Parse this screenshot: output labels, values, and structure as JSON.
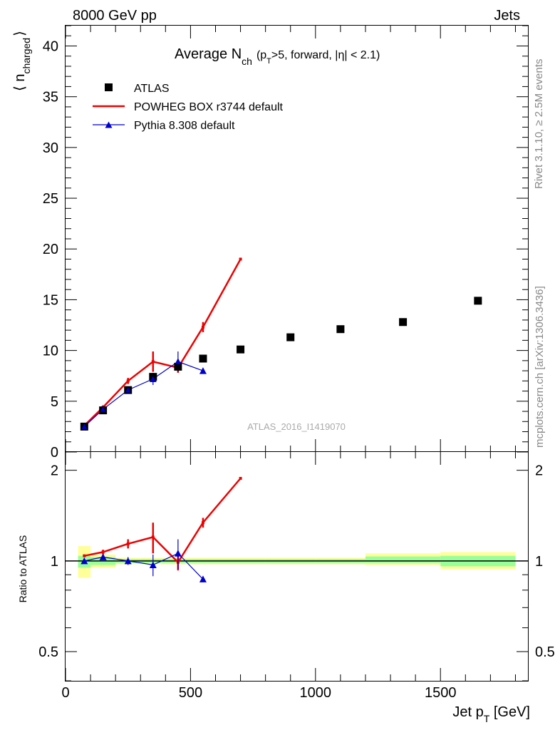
{
  "header": {
    "left": "8000 GeV pp",
    "right": "Jets"
  },
  "title": {
    "main": "Average N",
    "sub": "ch",
    "extra_open": "(p",
    "extra_sub": "T",
    "extra_rest": ">5, forward, |η| < 2.1)"
  },
  "side_labels": {
    "rivet": "Rivet 3.1.10, ≥ 2.5M events",
    "mcplots": "mcplots.cern.ch [arXiv:1306.3436]"
  },
  "watermark": "ATLAS_2016_I1419070",
  "colors": {
    "atlas": "#000000",
    "powheg": "#ee0000",
    "pythia": "#0000cc",
    "band_inner": "#99ff99",
    "band_outer": "#ffff99"
  },
  "chart_data": [
    {
      "type": "scatter",
      "ylabel_open": "⟨ n",
      "ylabel_sub": "charged",
      "ylabel_close": "⟩",
      "xlim": [
        0,
        1850
      ],
      "ylim": [
        0,
        42
      ],
      "yticks": [
        0,
        5,
        10,
        15,
        20,
        25,
        30,
        35,
        40
      ],
      "legend_position": "top-left",
      "series": [
        {
          "name": "ATLAS",
          "style": "markers",
          "x": [
            75,
            150,
            250,
            350,
            450,
            550,
            700,
            900,
            1100,
            1350,
            1650
          ],
          "y": [
            2.5,
            4.1,
            6.1,
            7.4,
            8.4,
            9.2,
            10.1,
            11.3,
            12.1,
            12.8,
            14.9
          ]
        },
        {
          "name": "POWHEG BOX r3744 default",
          "style": "line",
          "x": [
            75,
            150,
            250,
            350,
            450,
            550,
            700
          ],
          "y": [
            2.6,
            4.4,
            7.0,
            8.9,
            8.3,
            12.3,
            19.0
          ],
          "err": [
            0.1,
            0.2,
            0.3,
            1.0,
            0.5,
            0.5,
            0
          ]
        },
        {
          "name": "Pythia 8.308 default",
          "style": "line-triangles",
          "x": [
            75,
            150,
            250,
            350,
            450,
            550
          ],
          "y": [
            2.5,
            4.2,
            6.1,
            7.2,
            8.9,
            8.0
          ],
          "err": [
            0.05,
            0.1,
            0.2,
            0.6,
            1.0,
            0.2
          ]
        }
      ]
    },
    {
      "type": "line",
      "ylabel": "Ratio to ATLAS",
      "xlabel_main": "Jet p",
      "xlabel_sub": "T",
      "xlabel_unit": " [GeV]",
      "xlim": [
        0,
        1850
      ],
      "ylim": [
        0.4,
        2.3
      ],
      "log_y": true,
      "xticks": [
        0,
        500,
        1000,
        1500
      ],
      "yticks": [
        0.5,
        1,
        2
      ],
      "ytick_labels": [
        "0.5",
        "1",
        "2"
      ],
      "bands": [
        {
          "x0": 50,
          "x1": 100,
          "inner": [
            0.95,
            1.04
          ],
          "outer": [
            0.88,
            1.12
          ]
        },
        {
          "x0": 100,
          "x1": 200,
          "inner": [
            0.97,
            1.03
          ],
          "outer": [
            0.95,
            1.05
          ]
        },
        {
          "x0": 200,
          "x1": 300,
          "inner": [
            0.985,
            1.015
          ],
          "outer": [
            0.975,
            1.025
          ]
        },
        {
          "x0": 300,
          "x1": 400,
          "inner": [
            0.985,
            1.015
          ],
          "outer": [
            0.975,
            1.025
          ]
        },
        {
          "x0": 400,
          "x1": 500,
          "inner": [
            0.985,
            1.015
          ],
          "outer": [
            0.975,
            1.025
          ]
        },
        {
          "x0": 500,
          "x1": 600,
          "inner": [
            0.985,
            1.015
          ],
          "outer": [
            0.975,
            1.025
          ]
        },
        {
          "x0": 600,
          "x1": 800,
          "inner": [
            0.985,
            1.015
          ],
          "outer": [
            0.975,
            1.025
          ]
        },
        {
          "x0": 800,
          "x1": 1000,
          "inner": [
            0.985,
            1.015
          ],
          "outer": [
            0.975,
            1.025
          ]
        },
        {
          "x0": 1000,
          "x1": 1200,
          "inner": [
            0.985,
            1.015
          ],
          "outer": [
            0.975,
            1.025
          ]
        },
        {
          "x0": 1200,
          "x1": 1500,
          "inner": [
            0.985,
            1.035
          ],
          "outer": [
            0.97,
            1.06
          ]
        },
        {
          "x0": 1500,
          "x1": 1800,
          "inner": [
            0.96,
            1.04
          ],
          "outer": [
            0.94,
            1.07
          ]
        }
      ],
      "series": [
        {
          "name": "POWHEG BOX r3744 default",
          "x": [
            75,
            150,
            250,
            350,
            450,
            550,
            700
          ],
          "y": [
            1.04,
            1.07,
            1.14,
            1.2,
            0.99,
            1.34,
            1.88
          ],
          "err": [
            0.01,
            0.02,
            0.04,
            0.14,
            0.06,
            0.05,
            0
          ]
        },
        {
          "name": "Pythia 8.308 default",
          "x": [
            75,
            150,
            250,
            350,
            450,
            550
          ],
          "y": [
            1.0,
            1.03,
            1.0,
            0.97,
            1.06,
            0.87
          ],
          "err": [
            0.01,
            0.02,
            0.03,
            0.08,
            0.12,
            0.02
          ]
        }
      ]
    }
  ]
}
